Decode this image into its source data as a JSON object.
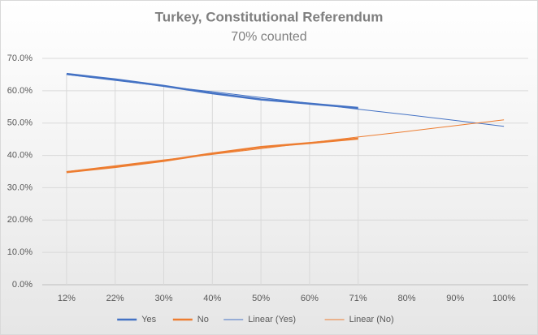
{
  "chart_data": {
    "type": "line",
    "title": "Turkey, Constitutional Referendum",
    "subtitle": "70% counted",
    "categories": [
      "12%",
      "22%",
      "30%",
      "40%",
      "50%",
      "60%",
      "71%",
      "80%",
      "90%",
      "100%"
    ],
    "series": [
      {
        "name": "Yes",
        "color": "#4472c4",
        "line_width": 2.5,
        "values": [
          65.2,
          63.5,
          61.5,
          59.2,
          57.3,
          56.0,
          54.7,
          null,
          null,
          null
        ]
      },
      {
        "name": "No",
        "color": "#ed7d31",
        "line_width": 2.5,
        "values": [
          34.8,
          36.4,
          38.3,
          40.6,
          42.6,
          43.8,
          45.2,
          null,
          null,
          null
        ]
      },
      {
        "name": "Linear (Yes)",
        "color": "#4472c4",
        "line_width": 1,
        "values": [
          65.0,
          63.2,
          61.4,
          59.7,
          57.9,
          56.1,
          54.3,
          52.6,
          50.8,
          49.0
        ]
      },
      {
        "name": "Linear (No)",
        "color": "#ed7d31",
        "line_width": 1,
        "values": [
          35.0,
          36.8,
          38.6,
          40.3,
          42.1,
          43.9,
          45.7,
          47.4,
          49.2,
          51.0
        ]
      }
    ],
    "ylim": [
      0,
      70
    ],
    "yticks": [
      {
        "value": 0,
        "label": "0.0%"
      },
      {
        "value": 10,
        "label": "10.0%"
      },
      {
        "value": 20,
        "label": "20.0%"
      },
      {
        "value": 30,
        "label": "30.0%"
      },
      {
        "value": 40,
        "label": "40.0%"
      },
      {
        "value": 50,
        "label": "50.0%"
      },
      {
        "value": 60,
        "label": "60.0%"
      },
      {
        "value": 70,
        "label": "70.0%"
      }
    ],
    "drop_lines": true,
    "legend": "bottom"
  }
}
